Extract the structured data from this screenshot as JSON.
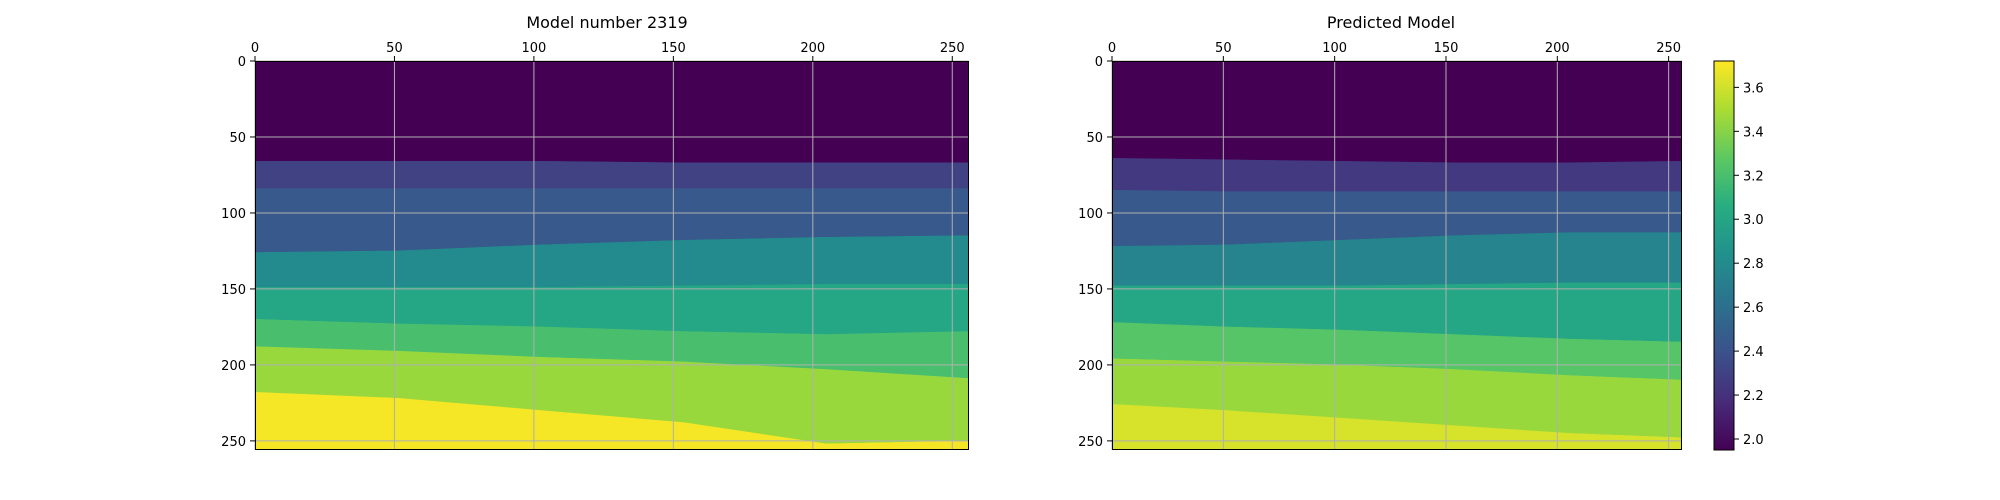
{
  "chart_data": [
    {
      "type": "heatmap",
      "title": "Model number 2319",
      "xlim": [
        0,
        256
      ],
      "ylim": [
        256,
        0
      ],
      "xticks": [
        0,
        50,
        100,
        150,
        200,
        250
      ],
      "yticks": [
        0,
        50,
        100,
        150,
        200,
        250
      ],
      "x_axis_position": "top",
      "grid": true,
      "layers": [
        {
          "value": 1.95,
          "bottom": [
            66,
            66,
            66,
            67,
            67,
            67
          ]
        },
        {
          "value": 2.3,
          "bottom": [
            84,
            84,
            84,
            84,
            84,
            84
          ]
        },
        {
          "value": 2.45,
          "bottom": [
            126,
            125,
            121,
            118,
            116,
            115
          ]
        },
        {
          "value": 2.8,
          "bottom": [
            149,
            149,
            149,
            148,
            147,
            147
          ]
        },
        {
          "value": 3.0,
          "bottom": [
            170,
            173,
            175,
            178,
            180,
            178
          ]
        },
        {
          "value": 3.2,
          "bottom": [
            188,
            191,
            195,
            198,
            203,
            209
          ]
        },
        {
          "value": 3.45,
          "bottom": [
            218,
            222,
            230,
            238,
            252,
            250
          ]
        },
        {
          "value": 3.7,
          "bottom": [
            256,
            256,
            256,
            256,
            256,
            256
          ]
        }
      ]
    },
    {
      "type": "heatmap",
      "title": "Predicted Model",
      "xlim": [
        0,
        256
      ],
      "ylim": [
        256,
        0
      ],
      "xticks": [
        0,
        50,
        100,
        150,
        200,
        250
      ],
      "yticks": [
        0,
        50,
        100,
        150,
        200,
        250
      ],
      "x_axis_position": "top",
      "grid": true,
      "layers": [
        {
          "value": 1.95,
          "bottom": [
            64,
            65,
            66,
            67,
            67,
            66
          ]
        },
        {
          "value": 2.25,
          "bottom": [
            85,
            86,
            86,
            86,
            86,
            86
          ]
        },
        {
          "value": 2.45,
          "bottom": [
            122,
            121,
            118,
            115,
            113,
            113
          ]
        },
        {
          "value": 2.75,
          "bottom": [
            148,
            148,
            148,
            147,
            146,
            146
          ]
        },
        {
          "value": 3.0,
          "bottom": [
            172,
            175,
            177,
            180,
            183,
            185
          ]
        },
        {
          "value": 3.25,
          "bottom": [
            196,
            198,
            200,
            203,
            207,
            210
          ]
        },
        {
          "value": 3.45,
          "bottom": [
            226,
            230,
            235,
            240,
            245,
            248
          ]
        },
        {
          "value": 3.62,
          "bottom": [
            256,
            256,
            256,
            256,
            256,
            256
          ]
        }
      ]
    }
  ],
  "colorbar": {
    "colormap": "viridis",
    "vmin": 1.95,
    "vmax": 3.72,
    "ticks": [
      "2.0",
      "2.2",
      "2.4",
      "2.6",
      "2.8",
      "3.0",
      "3.2",
      "3.4",
      "3.6"
    ]
  },
  "colors": {
    "grid": "#b0b0b0",
    "axes": "#000000"
  }
}
